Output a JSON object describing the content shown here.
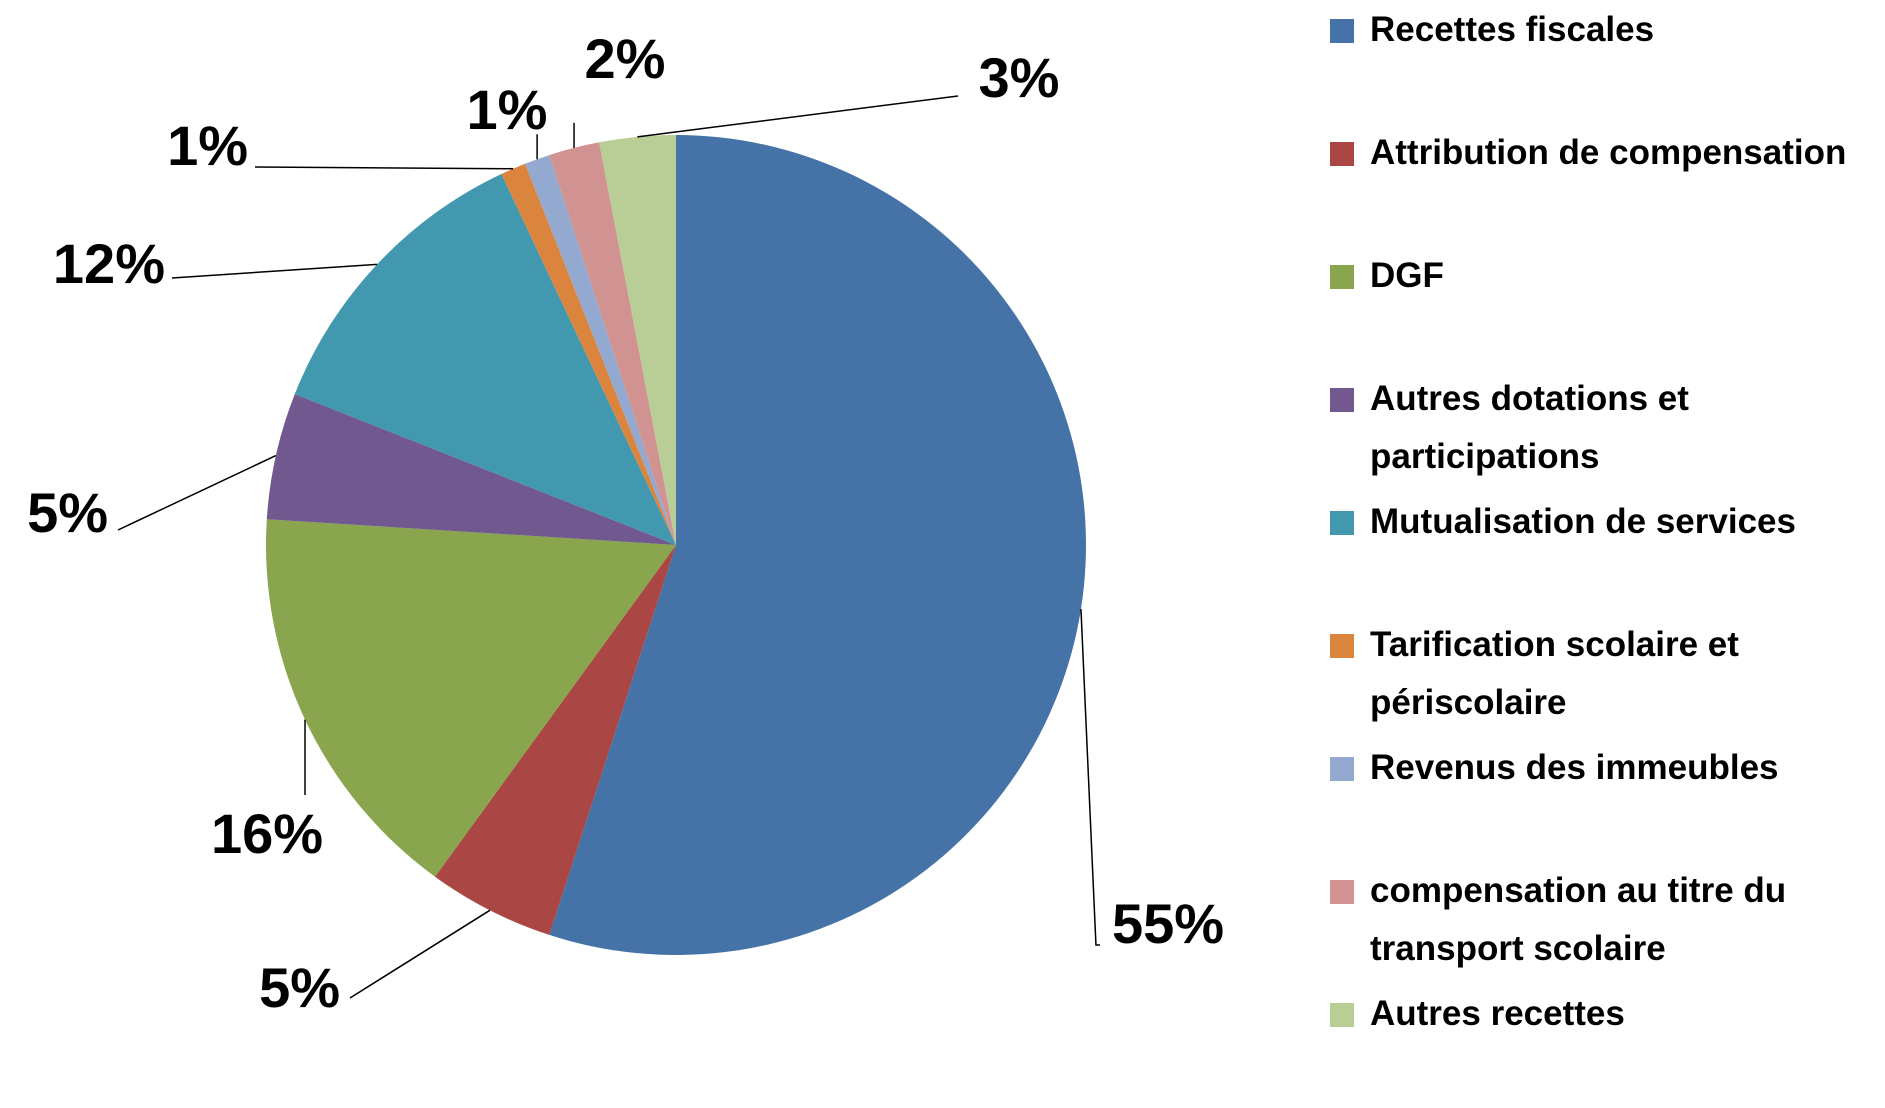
{
  "chart_data": {
    "type": "pie",
    "labels": [
      "Recettes fiscales",
      "Attribution de compensation",
      "DGF",
      "Autres dotations et participations",
      "Mutualisation de services",
      "Tarification scolaire et périscolaire",
      "Revenus des immeubles",
      "compensation au titre du transport scolaire",
      "Autres recettes"
    ],
    "values": [
      55,
      5,
      16,
      5,
      12,
      1,
      1,
      2,
      3
    ],
    "value_labels": [
      "55%",
      "5%",
      "16%",
      "5%",
      "12%",
      "1%",
      "1%",
      "2%",
      "3%"
    ],
    "colors": [
      "#4573a7",
      "#aa4643",
      "#89a54e",
      "#71588f",
      "#4198af",
      "#db843d",
      "#93a9cf",
      "#d19392",
      "#b9cd96"
    ]
  }
}
